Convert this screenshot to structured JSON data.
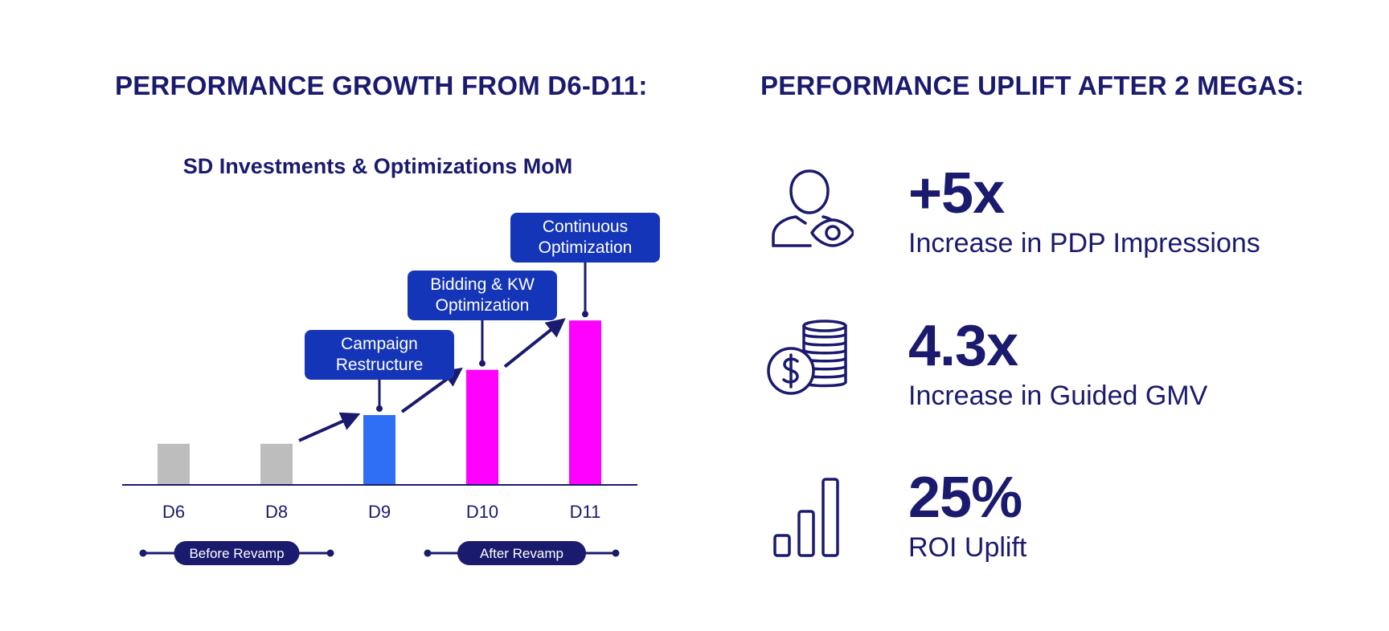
{
  "left_heading": "PERFORMANCE GROWTH FROM D6-D11:",
  "right_heading": "PERFORMANCE UPLIFT AFTER 2 MEGAS:",
  "colors": {
    "navy": "#1a1a6e",
    "callout": "#1535b8",
    "gray_bar": "#bdbdbd",
    "blue_bar": "#2f6ff5",
    "magenta_bar": "#ff00ff"
  },
  "chart_data": {
    "type": "bar",
    "title": "SD Investments & Optimizations MoM",
    "categories": [
      "D6",
      "D8",
      "D9",
      "D10",
      "D11"
    ],
    "values": [
      1,
      1,
      1.7,
      2.8,
      4.0
    ],
    "bar_colors": [
      "#bdbdbd",
      "#bdbdbd",
      "#2f6ff5",
      "#ff00ff",
      "#ff00ff"
    ],
    "xlabel": "",
    "ylabel": "",
    "ylim": [
      0,
      4.2
    ],
    "grid": false,
    "annotations": [
      {
        "category": "D9",
        "lines": [
          "Campaign",
          "Restructure"
        ]
      },
      {
        "category": "D10",
        "lines": [
          "Bidding & KW",
          "Optimization"
        ]
      },
      {
        "category": "D11",
        "lines": [
          "Continuous",
          "Optimization"
        ]
      }
    ],
    "periods": [
      {
        "label": "Before Revamp",
        "from": "D6",
        "to": "D8"
      },
      {
        "label": "After Revamp",
        "from": "D10",
        "to": "D11"
      }
    ]
  },
  "metrics": [
    {
      "value": "+5x",
      "label": "Increase in PDP Impressions",
      "icon": "user-eye-icon"
    },
    {
      "value": "4.3x",
      "label": "Increase in Guided GMV",
      "icon": "coins-dollar-icon"
    },
    {
      "value": "25%",
      "label": "ROI Uplift",
      "icon": "bar-chart-icon"
    }
  ]
}
